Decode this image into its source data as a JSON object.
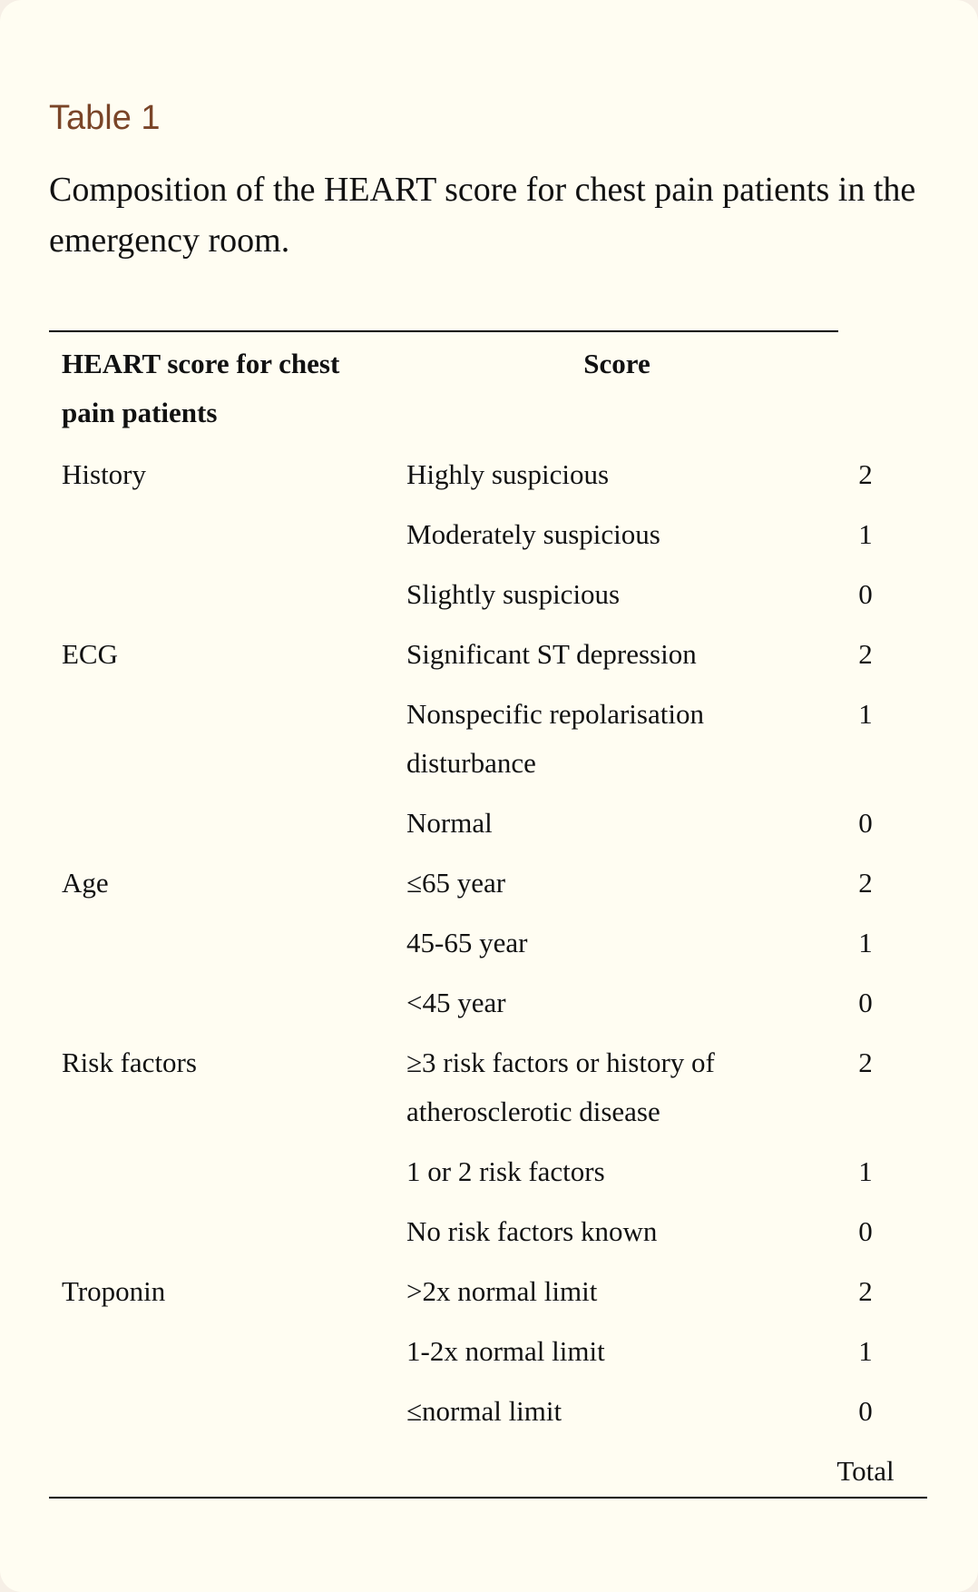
{
  "table_label": "Table 1",
  "caption": "Composition of the HEART score for chest pain patients in the emergency room.",
  "header": {
    "category": "HEART score for chest pain patients",
    "score": "Score"
  },
  "rows": [
    {
      "category": "History",
      "description": "Highly suspicious",
      "score": "2"
    },
    {
      "category": "",
      "description": "Moderately suspicious",
      "score": "1"
    },
    {
      "category": "",
      "description": "Slightly suspicious",
      "score": "0"
    },
    {
      "category": "ECG",
      "description": "Significant ST depression",
      "score": "2"
    },
    {
      "category": "",
      "description": "Nonspecific repolarisation disturbance",
      "score": "1"
    },
    {
      "category": "",
      "description": "Normal",
      "score": "0"
    },
    {
      "category": "Age",
      "description": "≤65 year",
      "score": "2"
    },
    {
      "category": "",
      "description": "45-65 year",
      "score": "1"
    },
    {
      "category": "",
      "description": "<45 year",
      "score": "0"
    },
    {
      "category": "Risk factors",
      "description": "≥3 risk factors or history of atherosclerotic disease",
      "score": "2"
    },
    {
      "category": "",
      "description": "1 or 2 risk factors",
      "score": "1"
    },
    {
      "category": "",
      "description": "No risk factors known",
      "score": "0"
    },
    {
      "category": "Troponin",
      "description": ">2x normal limit",
      "score": "2"
    },
    {
      "category": "",
      "description": "1-2x normal limit",
      "score": "1"
    },
    {
      "category": "",
      "description": "≤normal limit",
      "score": "0"
    },
    {
      "category": "",
      "description": "",
      "score": "Total"
    }
  ]
}
